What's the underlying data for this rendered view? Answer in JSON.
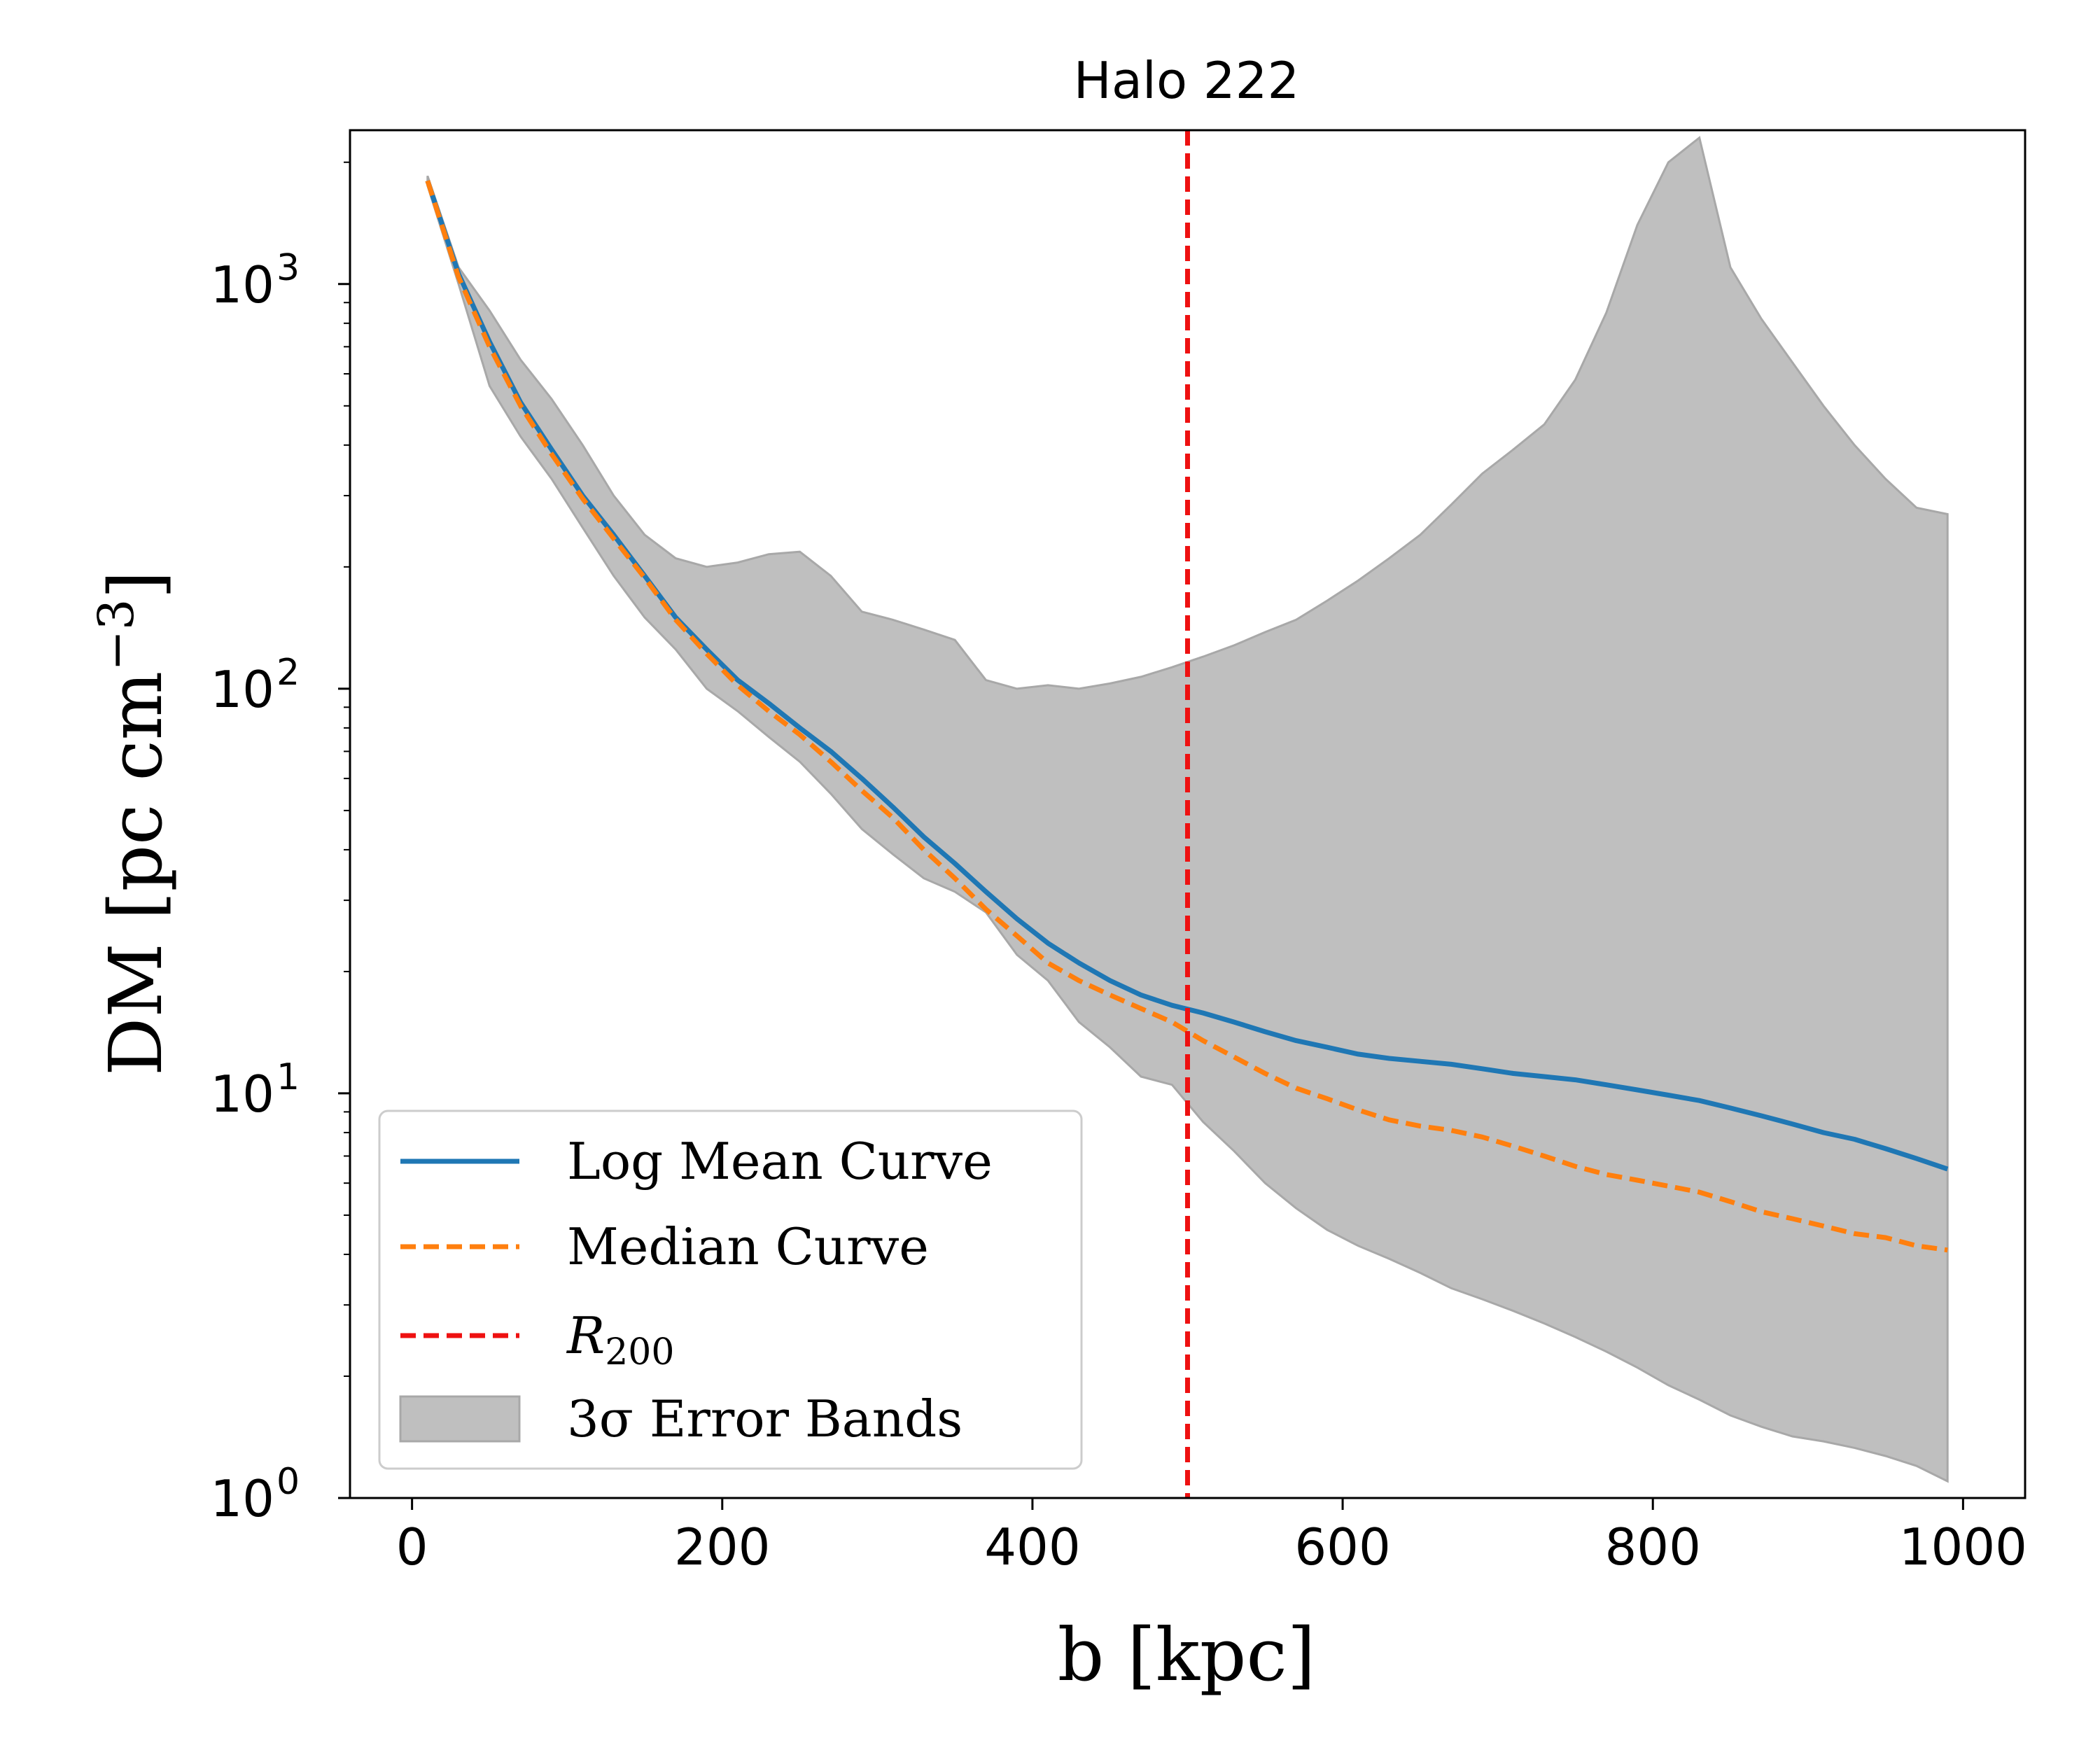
{
  "chart_data": {
    "type": "line",
    "title": "Halo 222",
    "xlabel": "b [kpc]",
    "ylabel": "DM [pc cm",
    "ylabel_sup": "−3",
    "ylabel_close": "]",
    "xlim": [
      -40,
      1040
    ],
    "ylim": [
      1,
      2400
    ],
    "yscale": "log",
    "xticks": [
      0,
      200,
      400,
      600,
      800,
      1000
    ],
    "xtick_labels": [
      "0",
      "200",
      "400",
      "600",
      "800",
      "1000"
    ],
    "yticks": [
      1,
      10,
      100,
      1000
    ],
    "ytick_base": "10",
    "ytick_exps": [
      "0",
      "1",
      "2",
      "3"
    ],
    "grid": false,
    "legend_position": "lower-left",
    "vline": {
      "x": 500,
      "label_main": "R",
      "label_sub": "200",
      "color": "#ee1111"
    },
    "x": [
      10,
      30,
      50,
      70,
      90,
      110,
      130,
      150,
      170,
      190,
      210,
      230,
      250,
      270,
      290,
      310,
      330,
      350,
      370,
      390,
      410,
      430,
      450,
      470,
      490,
      510,
      530,
      550,
      570,
      590,
      610,
      630,
      650,
      670,
      690,
      710,
      730,
      750,
      770,
      790,
      810,
      830,
      850,
      870,
      890,
      910,
      930,
      950,
      970,
      990
    ],
    "series": [
      {
        "name": "Log Mean Curve",
        "color": "#1f77b4",
        "style": "solid",
        "values": [
          1800,
          1060,
          720,
          510,
          390,
          300,
          240,
          190,
          150,
          125,
          105,
          92,
          80,
          70,
          60,
          51,
          43,
          37,
          31.5,
          27,
          23.5,
          21,
          19,
          17.5,
          16.5,
          15.8,
          15,
          14.2,
          13.5,
          13,
          12.5,
          12.2,
          12,
          11.8,
          11.5,
          11.2,
          11,
          10.8,
          10.5,
          10.2,
          9.9,
          9.6,
          9.2,
          8.8,
          8.4,
          8,
          7.7,
          7.3,
          6.9,
          6.5
        ]
      },
      {
        "name": "Median Curve",
        "color": "#ff7f0e",
        "style": "dashed",
        "values": [
          1800,
          1040,
          700,
          500,
          380,
          295,
          235,
          188,
          148,
          122,
          102,
          88,
          77,
          66,
          56,
          48,
          40,
          34,
          28.5,
          24.5,
          21,
          19,
          17.5,
          16.2,
          15,
          13.5,
          12.3,
          11.2,
          10.3,
          9.7,
          9.1,
          8.6,
          8.3,
          8.1,
          7.8,
          7.4,
          7,
          6.6,
          6.3,
          6.1,
          5.9,
          5.7,
          5.4,
          5.1,
          4.9,
          4.7,
          4.5,
          4.4,
          4.2,
          4.1
        ]
      }
    ],
    "band": {
      "name": "3σ Error Bands",
      "color": "#bfbfbf",
      "upper": [
        1850,
        1100,
        860,
        650,
        520,
        400,
        300,
        240,
        210,
        200,
        205,
        215,
        218,
        190,
        155,
        148,
        140,
        132,
        105,
        100,
        102,
        100,
        103,
        107,
        113,
        120,
        128,
        138,
        148,
        165,
        185,
        210,
        240,
        285,
        340,
        390,
        450,
        580,
        850,
        1400,
        2000,
        2300,
        1100,
        820,
        640,
        500,
        400,
        330,
        280,
        270
      ],
      "lower": [
        1750,
        1000,
        560,
        420,
        330,
        250,
        190,
        150,
        125,
        100,
        88,
        76,
        66,
        55,
        45,
        39,
        34,
        31.5,
        28,
        22,
        19,
        15,
        13,
        11,
        10.5,
        8.5,
        7.2,
        6,
        5.2,
        4.6,
        4.2,
        3.9,
        3.6,
        3.3,
        3.1,
        2.9,
        2.7,
        2.5,
        2.3,
        2.1,
        1.9,
        1.75,
        1.6,
        1.5,
        1.42,
        1.38,
        1.33,
        1.27,
        1.2,
        1.1
      ]
    }
  }
}
